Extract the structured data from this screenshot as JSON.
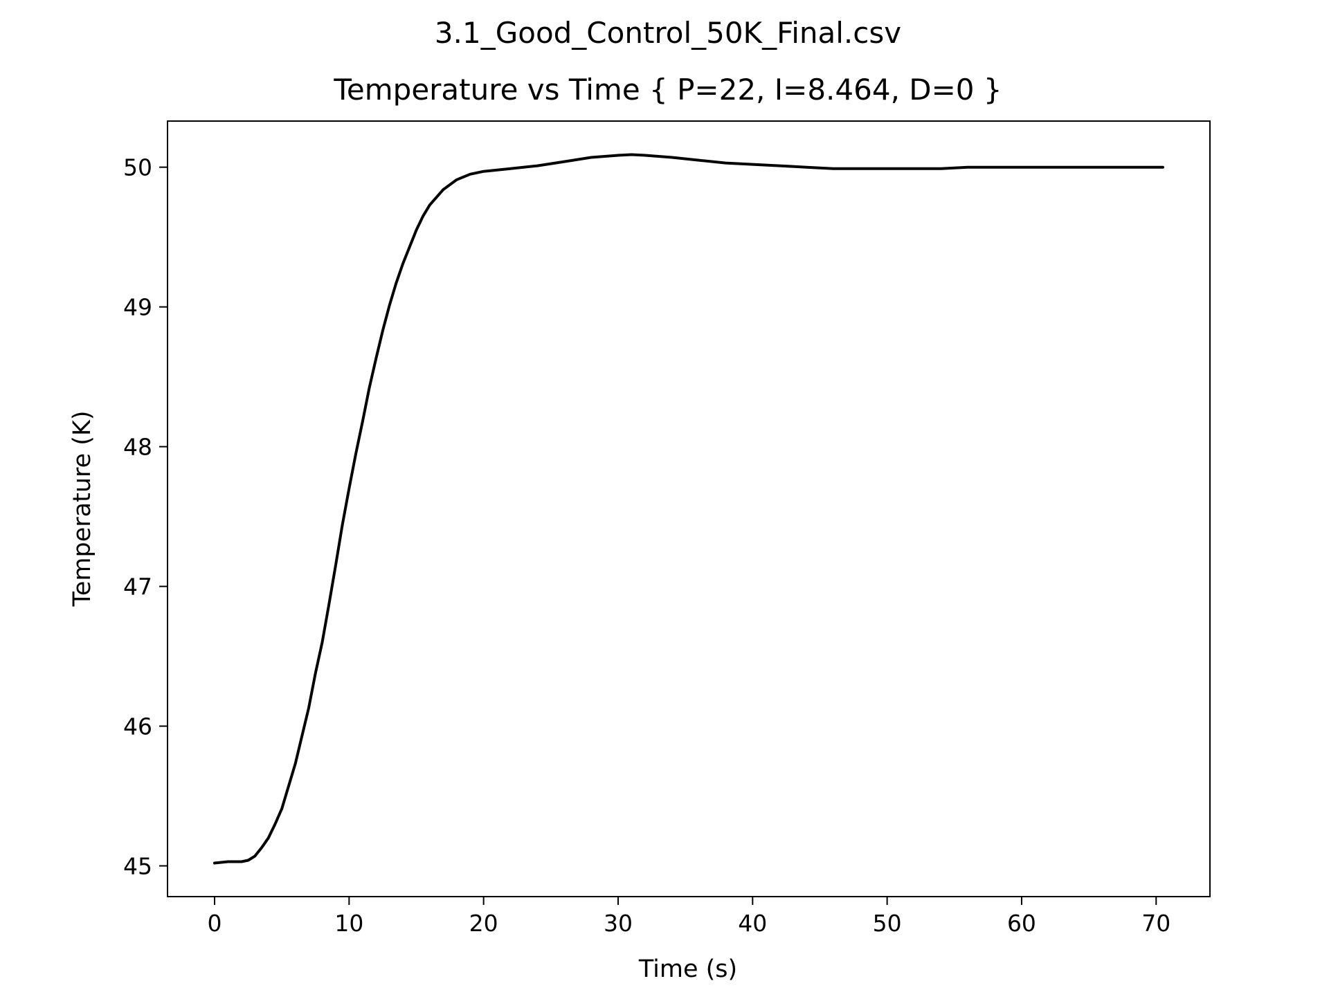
{
  "chart_data": {
    "type": "line",
    "suptitle": "3.1_Good_Control_50K_Final.csv",
    "title": "Temperature vs Time { P=22, I=8.464, D=0 }",
    "xlabel": "Time (s)",
    "ylabel": "Temperature (K)",
    "xlim": [
      -3.5,
      74
    ],
    "ylim": [
      44.78,
      50.33
    ],
    "xticks": [
      0,
      10,
      20,
      30,
      40,
      50,
      60,
      70
    ],
    "yticks": [
      45,
      46,
      47,
      48,
      49,
      50
    ],
    "grid": false,
    "line_color": "#000000",
    "series": [
      {
        "x": [
          0,
          1,
          2,
          2.5,
          3,
          3.5,
          4,
          4.5,
          5,
          5.5,
          6,
          6.5,
          7,
          7.5,
          8,
          8.5,
          9,
          9.5,
          10,
          10.5,
          11,
          11.5,
          12,
          12.5,
          13,
          13.5,
          14,
          14.5,
          15,
          15.5,
          16,
          17,
          18,
          19,
          20,
          22,
          24,
          26,
          28,
          30,
          31,
          32,
          34,
          36,
          38,
          40,
          42,
          44,
          46,
          48,
          50,
          52,
          54,
          56,
          58,
          60,
          62,
          64,
          66,
          68,
          70.5
        ],
        "y": [
          45.02,
          45.03,
          45.03,
          45.04,
          45.07,
          45.13,
          45.2,
          45.3,
          45.41,
          45.57,
          45.73,
          45.93,
          46.13,
          46.38,
          46.6,
          46.87,
          47.15,
          47.44,
          47.7,
          47.95,
          48.18,
          48.42,
          48.63,
          48.83,
          49.01,
          49.17,
          49.31,
          49.43,
          49.55,
          49.65,
          49.73,
          49.84,
          49.91,
          49.95,
          49.97,
          49.99,
          50.01,
          50.04,
          50.07,
          50.085,
          50.09,
          50.085,
          50.07,
          50.05,
          50.03,
          50.02,
          50.01,
          50.0,
          49.99,
          49.99,
          49.99,
          49.99,
          49.99,
          50.0,
          50.0,
          50.0,
          50.0,
          50.0,
          50.0,
          50.0,
          50.0
        ]
      }
    ]
  }
}
